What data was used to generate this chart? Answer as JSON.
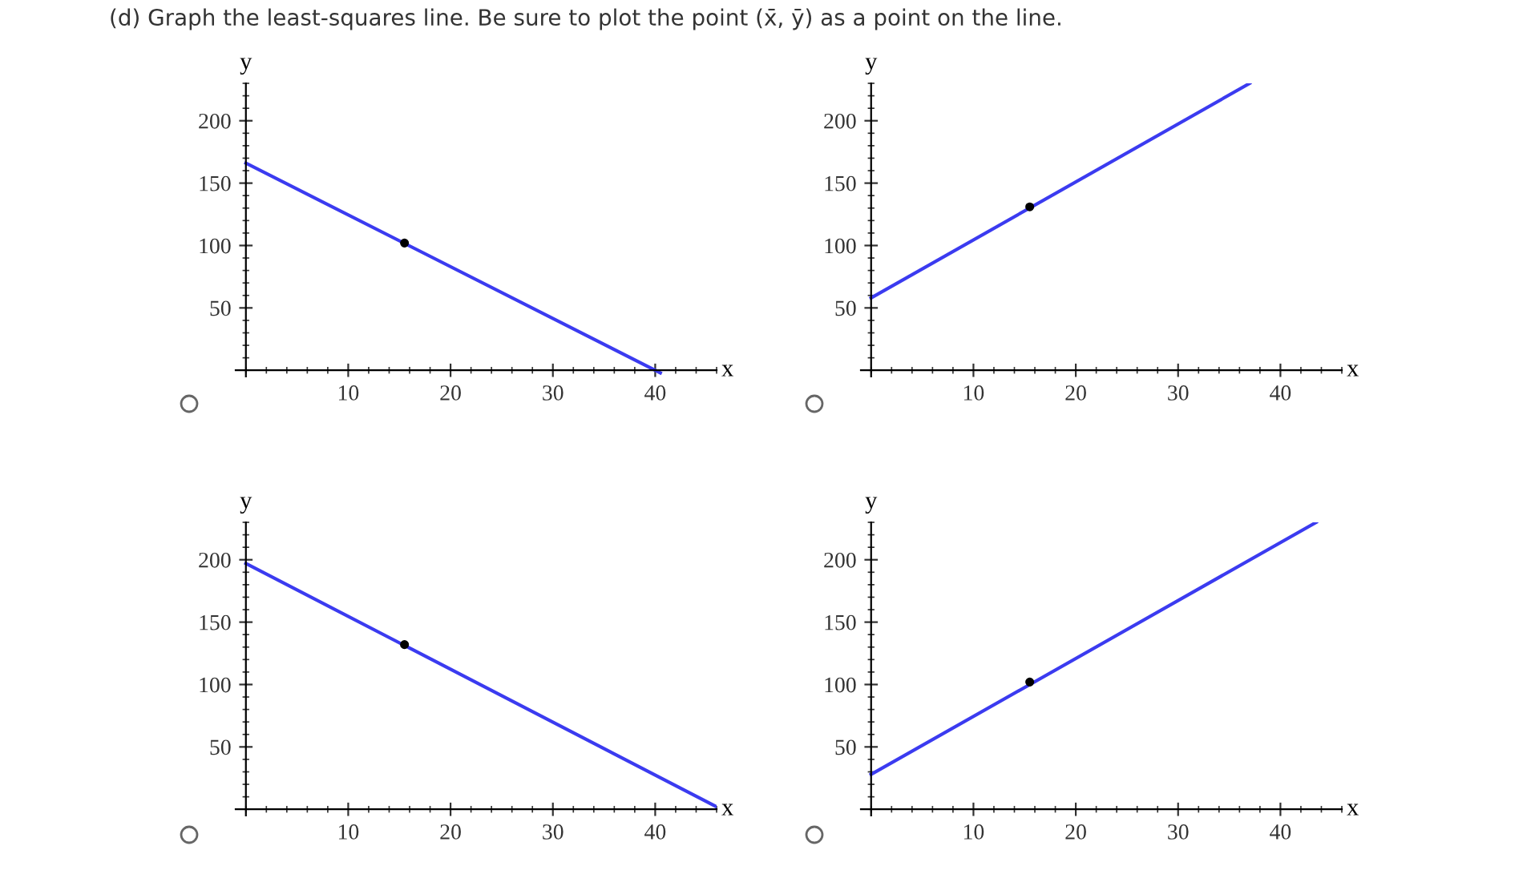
{
  "chart_data": [
    {
      "type": "line",
      "title": "(d) Graph the least-squares line. Be sure to plot the point (x̄, ȳ) as a point on the line.",
      "xlabel": "x",
      "ylabel": "y",
      "xlim": [
        -1,
        46
      ],
      "ylim": [
        -5,
        230
      ],
      "xticks": [
        10,
        20,
        30,
        40
      ],
      "yticks": [
        50,
        100,
        150,
        200
      ],
      "grid": false,
      "legend": false,
      "series": [
        {
          "color": "#3b3bf0",
          "x": [
            0,
            40.5
          ],
          "values": [
            166,
            -2
          ]
        },
        {
          "type": "scatter",
          "color": "#000000",
          "x": [
            15.5
          ],
          "values": [
            102
          ]
        }
      ]
    },
    {
      "type": "line",
      "xlabel": "x",
      "ylabel": "y",
      "xlim": [
        -1,
        46
      ],
      "ylim": [
        -5,
        230
      ],
      "xticks": [
        10,
        20,
        30,
        40
      ],
      "yticks": [
        50,
        100,
        150,
        200
      ],
      "grid": false,
      "legend": false,
      "series": [
        {
          "color": "#3b3bf0",
          "x": [
            0,
            37
          ],
          "values": [
            58,
            230
          ]
        },
        {
          "type": "scatter",
          "color": "#000000",
          "x": [
            15.5
          ],
          "values": [
            131
          ]
        }
      ]
    },
    {
      "type": "line",
      "xlabel": "x",
      "ylabel": "y",
      "xlim": [
        -1,
        46
      ],
      "ylim": [
        -5,
        230
      ],
      "xticks": [
        10,
        20,
        30,
        40
      ],
      "yticks": [
        50,
        100,
        150,
        200
      ],
      "grid": false,
      "legend": false,
      "series": [
        {
          "color": "#3b3bf0",
          "x": [
            0,
            46
          ],
          "values": [
            197,
            2
          ]
        },
        {
          "type": "scatter",
          "color": "#000000",
          "x": [
            15.5
          ],
          "values": [
            132
          ]
        }
      ]
    },
    {
      "type": "line",
      "xlabel": "x",
      "ylabel": "y",
      "xlim": [
        -1,
        46
      ],
      "ylim": [
        -5,
        230
      ],
      "xticks": [
        10,
        20,
        30,
        40
      ],
      "yticks": [
        50,
        100,
        150,
        200
      ],
      "grid": false,
      "legend": false,
      "series": [
        {
          "color": "#3b3bf0",
          "x": [
            0,
            43.5
          ],
          "values": [
            28,
            230
          ]
        },
        {
          "type": "scatter",
          "color": "#000000",
          "x": [
            15.5
          ],
          "values": [
            102
          ]
        }
      ]
    }
  ]
}
